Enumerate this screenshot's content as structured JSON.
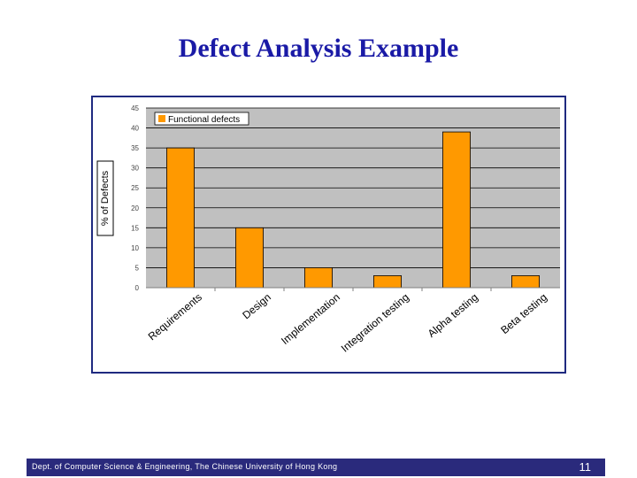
{
  "slide": {
    "title": "Defect Analysis Example",
    "footer_text": "Dept. of Computer Science & Engineering, The Chinese University of Hong Kong",
    "page_number": "11"
  },
  "colors": {
    "title": "#1a1aa6",
    "bar_fill": "#ff9900",
    "plot_bg": "#c0c0c0",
    "footer_bg": "#2a2a7c",
    "frame_border": "#1f2a80"
  },
  "chart_data": {
    "type": "bar",
    "categories": [
      "Requirements",
      "Design",
      "Implementation",
      "Integration testing",
      "Alpha testing",
      "Beta testing"
    ],
    "series": [
      {
        "name": "Functional defects",
        "values": [
          35,
          15,
          5,
          3,
          39,
          3
        ]
      }
    ],
    "ylabel": "% of Defects",
    "ylim": [
      0,
      45
    ],
    "yticks": [
      0,
      5,
      10,
      15,
      20,
      25,
      30,
      35,
      40,
      45
    ],
    "grid": true,
    "legend_position": "top-left"
  }
}
